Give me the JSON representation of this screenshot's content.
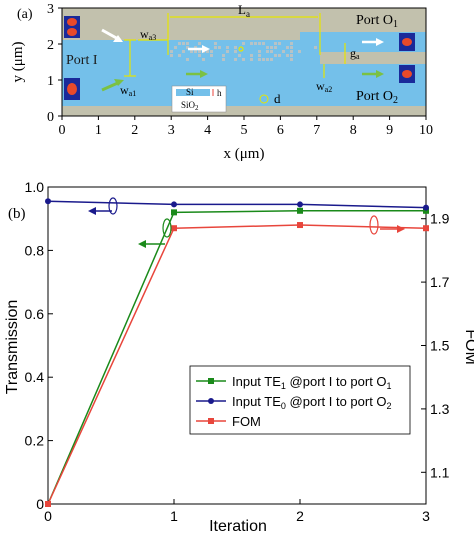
{
  "panel_a": {
    "label": "(a)",
    "x_title": "x (μm)",
    "y_title": "y (μm)",
    "x_ticks": [
      "0",
      "1",
      "2",
      "3",
      "4",
      "5",
      "6",
      "7",
      "8",
      "9",
      "10"
    ],
    "y_ticks": [
      "0",
      "1",
      "2",
      "3"
    ],
    "port_i": "Port I",
    "port_o1_main": "Port O",
    "port_o1_sub": "1",
    "port_o2_main": "Port O",
    "port_o2_sub": "2",
    "la_main": "L",
    "la_sub": "a",
    "wa3_main": "w",
    "wa3_sub": "a3",
    "wa1_main": "w",
    "wa1_sub": "a1",
    "wa2_main": "w",
    "wa2_sub": "a2",
    "ga_main": "g",
    "ga_sub": "a",
    "d_label": "d",
    "si_label": "Si",
    "h_label": "h",
    "sio2_main": "SiO",
    "sio2_sub": "2",
    "colors": {
      "substrate": "#c2c1ad",
      "waveguide": "#74c0ea",
      "arrow_green": "#7bc143",
      "dim": "#e6e600"
    }
  },
  "chart_data": {
    "type": "line",
    "label": "(b)",
    "x": [
      0,
      1,
      2,
      3
    ],
    "x_ticks": [
      "0",
      "1",
      "2",
      "3"
    ],
    "xlabel": "Iteration",
    "xlim": [
      0,
      3
    ],
    "ylabel": "Transmission",
    "ylim": [
      0,
      1.0
    ],
    "y_ticks": [
      "0",
      "0.2",
      "0.4",
      "0.6",
      "0.8",
      "1.0"
    ],
    "y2label": "FOM",
    "y2lim": [
      1.0,
      2.0
    ],
    "y2_ticks": [
      "1.1",
      "1.3",
      "1.5",
      "1.7",
      "1.9"
    ],
    "legend_position": "bottom-right",
    "series": [
      {
        "name_main": "Input TE",
        "name_sub": "1",
        "name_rest": " @port I to port O",
        "name_sub2": "1",
        "axis": "left",
        "color": "#1a8a1a",
        "marker": "square",
        "values": [
          0.0,
          0.92,
          0.925,
          0.925
        ]
      },
      {
        "name_main": "Input TE",
        "name_sub": "0",
        "name_rest": " @port I to port O",
        "name_sub2": "2",
        "axis": "left",
        "color": "#1a1a8c",
        "marker": "circle",
        "values": [
          0.955,
          0.945,
          0.945,
          0.935
        ]
      },
      {
        "name_main": "FOM",
        "name_sub": "",
        "name_rest": "",
        "name_sub2": "",
        "axis": "right",
        "color": "#e8463c",
        "marker": "square",
        "values": [
          1.0,
          1.87,
          1.88,
          1.87
        ]
      }
    ]
  }
}
